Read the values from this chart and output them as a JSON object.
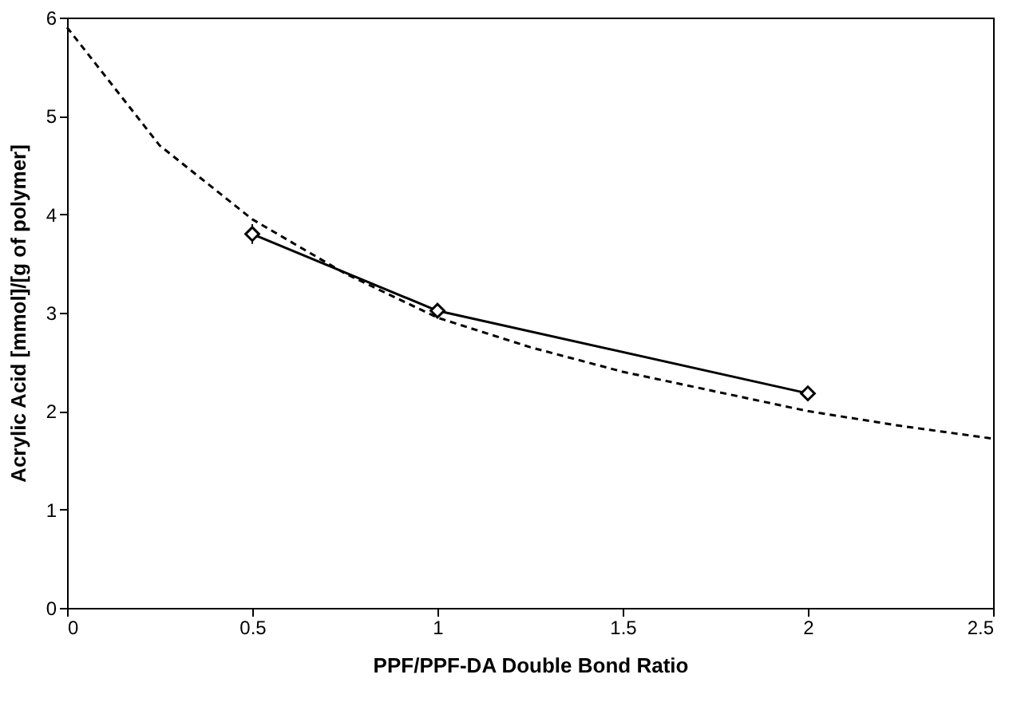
{
  "chart_data": {
    "type": "line",
    "xlabel": "PPF/PPF-DA Double Bond Ratio",
    "ylabel": "Acrylic Acid [mmol]/[g of polymer]",
    "xlim": [
      0,
      2.5
    ],
    "xticks": [
      0,
      0.5,
      1,
      1.5,
      2,
      2.5
    ],
    "ylim": [
      0,
      6
    ],
    "yticks": [
      0,
      1,
      2,
      3,
      4,
      5,
      6
    ],
    "grid": false,
    "legend": false,
    "series": [
      {
        "color": "#000000",
        "line_style": "solid",
        "marker": "diamond",
        "x": [
          0.5,
          1,
          2
        ],
        "values": [
          3.8,
          3.02,
          2.18
        ],
        "errors": [
          0.1,
          0.05,
          0.06
        ]
      },
      {
        "color": "#000000",
        "line_style": "dashed",
        "marker": "none",
        "x": [
          0,
          0.25,
          0.5,
          0.75,
          1,
          1.25,
          1.5,
          1.75,
          2,
          2.25,
          2.5
        ],
        "values": [
          5.9,
          4.7,
          3.95,
          3.4,
          2.95,
          2.65,
          2.4,
          2.2,
          2.0,
          1.85,
          1.72
        ]
      }
    ]
  }
}
